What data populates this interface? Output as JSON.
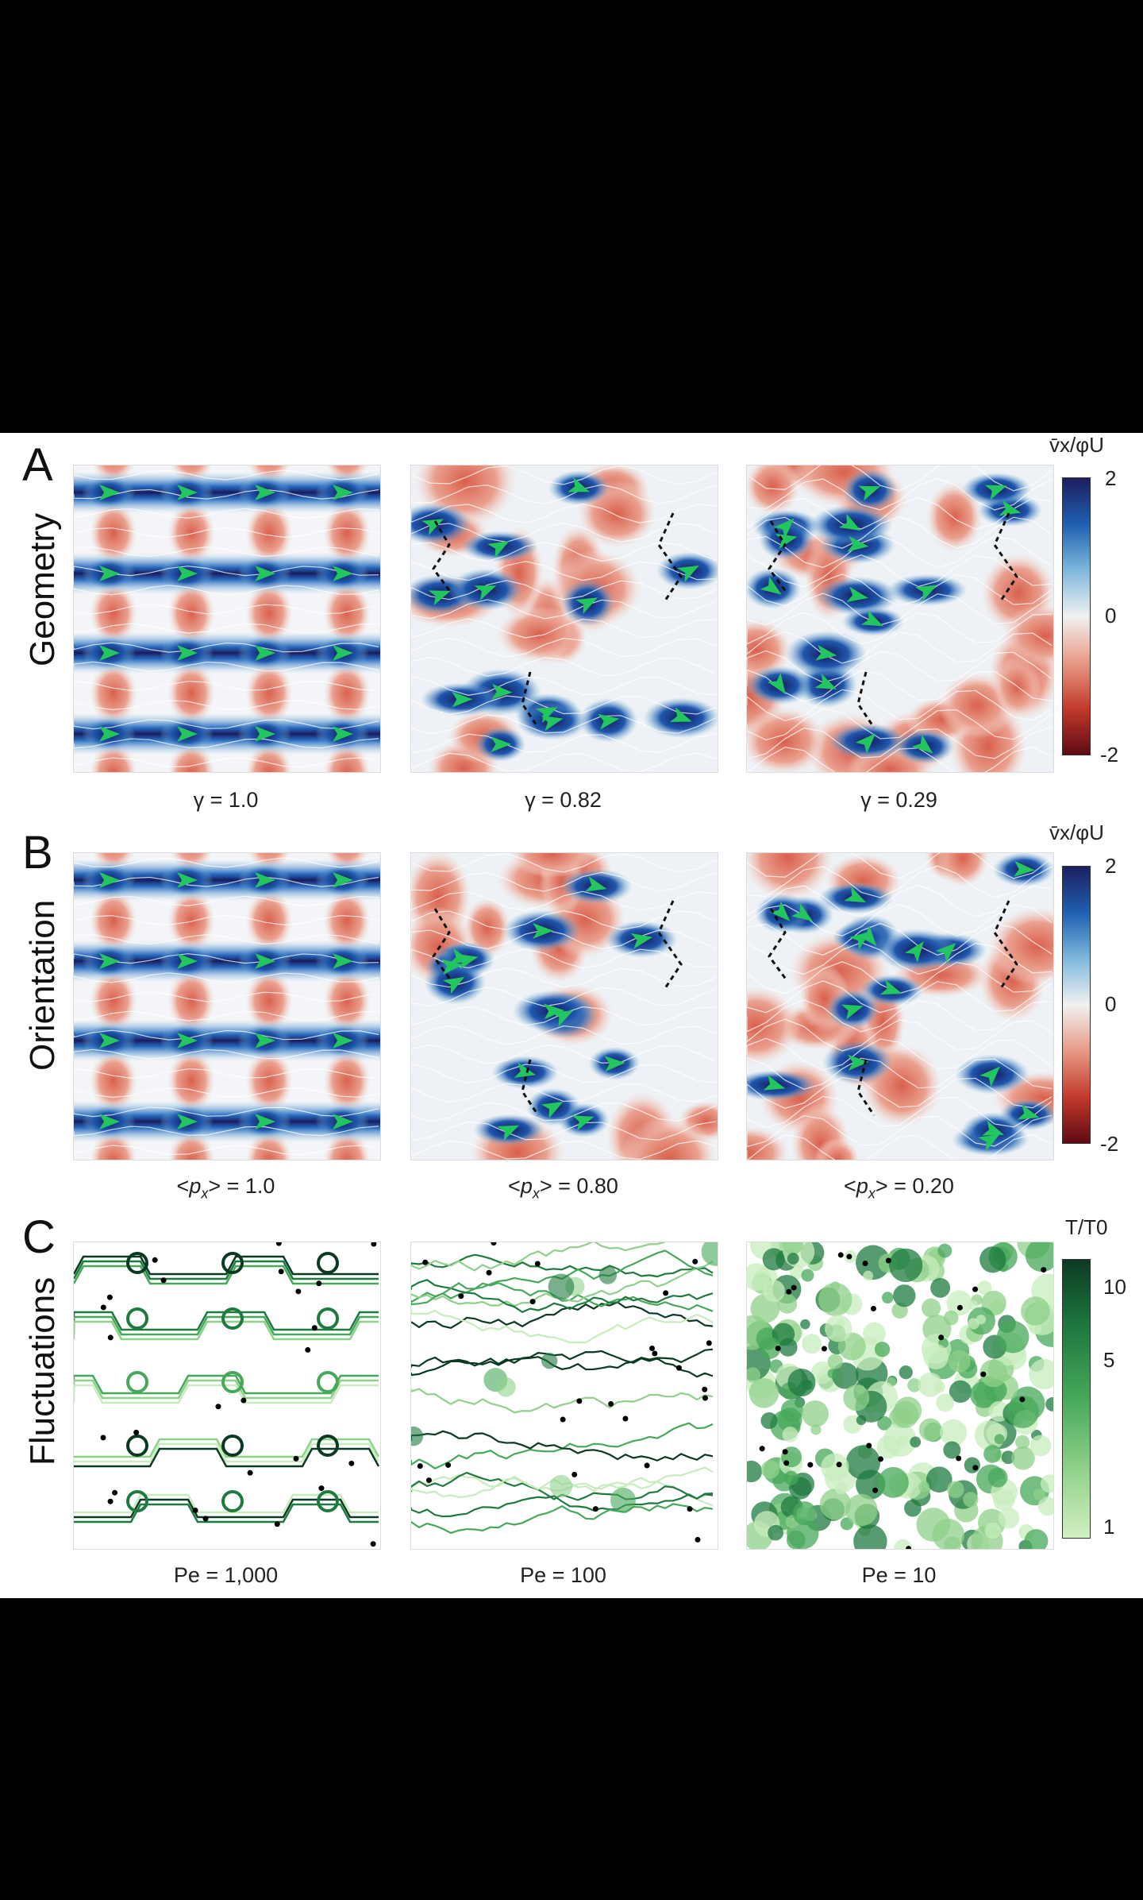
{
  "panels": {
    "A": {
      "letter": "A",
      "row_label": "Geometry",
      "captions": [
        "γ = 1.0",
        "γ = 0.82",
        "γ = 0.29"
      ]
    },
    "B": {
      "letter": "B",
      "row_label": "Orientation",
      "captions_pre": [
        "<",
        "<",
        "<"
      ],
      "caption_var": "p",
      "caption_sub": "x",
      "captions_post": [
        "> = 1.0",
        "> = 0.80",
        "> = 0.20"
      ]
    },
    "C": {
      "letter": "C",
      "row_label": "Fluctuations",
      "captions": [
        "Pe = 1,000",
        "Pe = 100",
        "Pe = 10"
      ]
    }
  },
  "colorbar_velocity": {
    "title": "v̄x/φU",
    "ticks": [
      "2",
      "0",
      "-2"
    ],
    "colors": [
      "#1c1f5e",
      "#1f5fb0",
      "#7fb8dc",
      "#f1f1f1",
      "#e79a86",
      "#c23a2b",
      "#5e0a14"
    ]
  },
  "colorbar_temperature": {
    "title": "T/T0",
    "ticks": [
      "10",
      "5",
      "1"
    ],
    "colors": [
      "#0b3a22",
      "#1f7a40",
      "#47a85a",
      "#8fd08a",
      "#d3f0c2"
    ]
  },
  "colors": {
    "arrow": "#22c55e",
    "trajectory": "#111111",
    "positive": "#1f3b8f",
    "negative": "#d9604d"
  }
}
